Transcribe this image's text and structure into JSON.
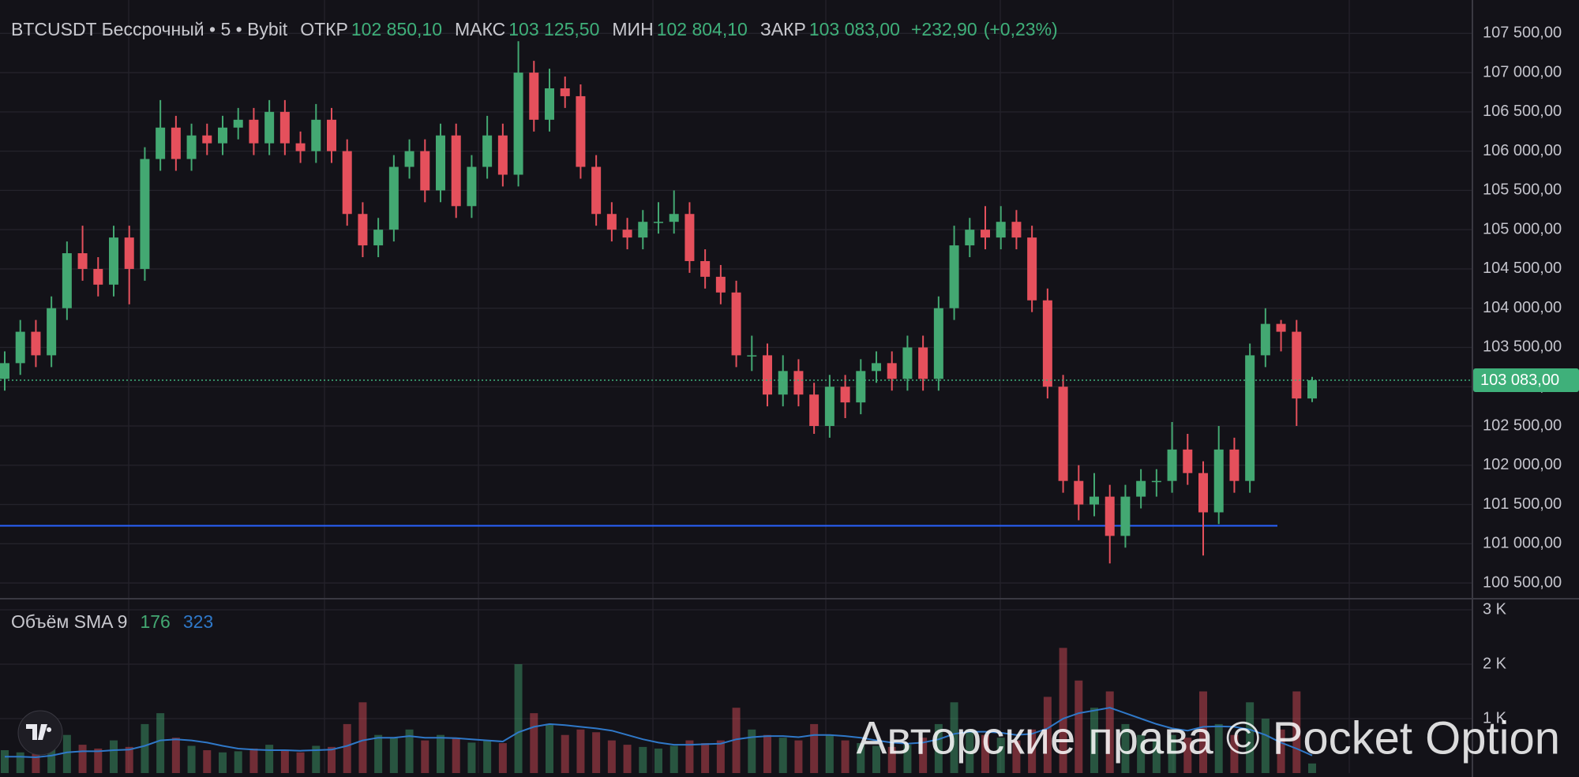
{
  "chart_data": {
    "type": "candlestick",
    "symbol": "BTCUSDT Бессрочный • 5 • Bybit",
    "legend_fields": [
      {
        "name": "ОТКР",
        "value": 102850.1,
        "label": "102 850,10"
      },
      {
        "name": "МАКС",
        "value": 103125.5,
        "label": "103 125,50"
      },
      {
        "name": "МИН",
        "value": 102804.1,
        "label": "102 804,10"
      },
      {
        "name": "ЗАКР",
        "value": 103083,
        "label": "103 083,00"
      }
    ],
    "change": {
      "value": 232.9,
      "label": "+232,90"
    },
    "change_pct": {
      "value": 0.23,
      "label": "(+0,23%)"
    },
    "up_color": "#43a872",
    "down_color": "#e5505c",
    "grid": true,
    "open": [
      103100,
      103300,
      103700,
      103400,
      104000,
      104700,
      104500,
      104300,
      104900,
      104500,
      105900,
      106300,
      105900,
      106200,
      106100,
      106300,
      106400,
      106100,
      106500,
      106100,
      106000,
      106400,
      106000,
      105200,
      104800,
      105000,
      105800,
      106000,
      105500,
      106200,
      105300,
      105800,
      106200,
      105700,
      107000,
      106400,
      106800,
      106700,
      105800,
      105200,
      105000,
      104900,
      105100,
      105100,
      105200,
      104600,
      104400,
      104200,
      103400,
      103400,
      102900,
      103200,
      102900,
      102500,
      103000,
      102800,
      103200,
      103300,
      103100,
      103500,
      103100,
      104000,
      104800,
      105000,
      104900,
      105100,
      104900,
      104100,
      103000,
      101800,
      101500,
      101600,
      101100,
      101600,
      101800,
      101800,
      102200,
      101900,
      101400,
      102200,
      101800,
      103400,
      103800,
      103700,
      102850.1
    ],
    "high": [
      103450,
      103850,
      103850,
      104150,
      104850,
      105050,
      104650,
      105050,
      105050,
      106050,
      106650,
      106450,
      106350,
      106350,
      106450,
      106550,
      106550,
      106650,
      106650,
      106250,
      106600,
      106550,
      106150,
      105350,
      105150,
      105950,
      106150,
      106150,
      106350,
      106350,
      105950,
      106450,
      106350,
      107400,
      107150,
      107050,
      106950,
      106850,
      105950,
      105350,
      105150,
      105250,
      105350,
      105500,
      105350,
      104750,
      104550,
      104350,
      103650,
      103550,
      103400,
      103350,
      103050,
      103150,
      103150,
      103350,
      103450,
      103450,
      103650,
      103650,
      104150,
      105050,
      105150,
      105300,
      105300,
      105250,
      105050,
      104250,
      103150,
      102000,
      101900,
      101750,
      101750,
      101950,
      101950,
      102550,
      102400,
      102050,
      102500,
      102350,
      103550,
      104000,
      103850,
      103850,
      103125.5
    ],
    "low": [
      102950,
      103150,
      103250,
      103250,
      103850,
      104350,
      104150,
      104150,
      104050,
      104350,
      105750,
      105750,
      105750,
      105950,
      105950,
      106150,
      105950,
      105950,
      105950,
      105850,
      105850,
      105850,
      105050,
      104650,
      104650,
      104850,
      105650,
      105350,
      105350,
      105150,
      105150,
      105650,
      105550,
      105550,
      106250,
      106250,
      106550,
      105650,
      105050,
      104850,
      104750,
      104750,
      104950,
      104950,
      104450,
      104250,
      104050,
      103250,
      103200,
      102750,
      102750,
      102750,
      102400,
      102350,
      102600,
      102650,
      103050,
      102950,
      102950,
      102950,
      102950,
      103850,
      104650,
      104750,
      104750,
      104750,
      103950,
      102850,
      101650,
      101300,
      101350,
      100750,
      100950,
      101450,
      101600,
      101650,
      101750,
      100850,
      101250,
      101650,
      101650,
      103250,
      103450,
      102500,
      102804.1
    ],
    "close": [
      103300,
      103700,
      103400,
      104000,
      104700,
      104500,
      104300,
      104900,
      104500,
      105900,
      106300,
      105900,
      106200,
      106100,
      106300,
      106400,
      106100,
      106500,
      106100,
      106000,
      106400,
      106000,
      105200,
      104800,
      105000,
      105800,
      106000,
      105500,
      106200,
      105300,
      105800,
      106200,
      105700,
      107000,
      106400,
      106800,
      106700,
      105800,
      105200,
      105000,
      104900,
      105100,
      105100,
      105200,
      104600,
      104400,
      104200,
      103400,
      103400,
      102900,
      103200,
      102900,
      102500,
      103000,
      102800,
      103200,
      103300,
      103100,
      103500,
      103100,
      104000,
      104800,
      105000,
      104900,
      105100,
      104900,
      104100,
      103000,
      101800,
      101500,
      101600,
      101100,
      101600,
      101800,
      101800,
      102200,
      101900,
      101400,
      102200,
      101800,
      103400,
      103800,
      103700,
      102850.1,
      103083
    ],
    "ylim": [
      100330,
      107925
    ],
    "yticks": [
      {
        "value": 100500,
        "label": "100 500,00"
      },
      {
        "value": 101000,
        "label": "101 000,00"
      },
      {
        "value": 101500,
        "label": "101 500,00"
      },
      {
        "value": 102000,
        "label": "102 000,00"
      },
      {
        "value": 102500,
        "label": "102 500,00"
      },
      {
        "value": 103000,
        "label": "103 000,00"
      },
      {
        "value": 103500,
        "label": "103 500,00"
      },
      {
        "value": 104000,
        "label": "104 000,00"
      },
      {
        "value": 104500,
        "label": "104 500,00"
      },
      {
        "value": 105000,
        "label": "105 000,00"
      },
      {
        "value": 105500,
        "label": "105 500,00"
      },
      {
        "value": 106000,
        "label": "106 000,00"
      },
      {
        "value": 106500,
        "label": "106 500,00"
      },
      {
        "value": 107000,
        "label": "107 000,00"
      },
      {
        "value": 107500,
        "label": "107 500,00"
      }
    ],
    "last_price": {
      "value": 103083,
      "label": "103 083,00",
      "color": "#3fb07a"
    },
    "level_line": {
      "value": 101229,
      "color": "#2962ff"
    },
    "volume": {
      "title": "Объём SMA 9",
      "values": [
        420,
        380,
        350,
        500,
        700,
        520,
        450,
        600,
        480,
        900,
        1100,
        650,
        500,
        420,
        380,
        400,
        450,
        520,
        430,
        380,
        500,
        480,
        900,
        1300,
        700,
        650,
        800,
        600,
        700,
        650,
        560,
        600,
        550,
        2000,
        1100,
        900,
        700,
        800,
        750,
        600,
        520,
        480,
        450,
        500,
        600,
        550,
        600,
        1200,
        800,
        700,
        650,
        600,
        900,
        700,
        600,
        550,
        500,
        480,
        520,
        650,
        900,
        1300,
        800,
        700,
        650,
        600,
        800,
        1400,
        2300,
        1700,
        1200,
        1500,
        900,
        700,
        600,
        700,
        650,
        1500,
        900,
        700,
        1300,
        1000,
        800,
        1500,
        176
      ],
      "sma": {
        "color": "#2f78c8",
        "values": [
          300,
          300,
          290,
          320,
          380,
          400,
          400,
          420,
          430,
          500,
          600,
          620,
          600,
          560,
          500,
          450,
          430,
          420,
          420,
          410,
          420,
          430,
          500,
          600,
          650,
          650,
          680,
          650,
          650,
          640,
          620,
          600,
          580,
          750,
          850,
          900,
          880,
          850,
          820,
          780,
          700,
          620,
          560,
          520,
          520,
          530,
          540,
          620,
          660,
          680,
          680,
          660,
          700,
          700,
          680,
          650,
          600,
          560,
          540,
          560,
          620,
          720,
          760,
          760,
          740,
          700,
          720,
          820,
          1000,
          1100,
          1150,
          1200,
          1100,
          1000,
          900,
          820,
          780,
          850,
          860,
          850,
          800,
          700,
          560,
          450,
          323
        ]
      },
      "ylim": [
        0,
        3116
      ],
      "yticks": [
        {
          "value": 1000,
          "label": "1 K"
        },
        {
          "value": 2000,
          "label": "2 K"
        },
        {
          "value": 3000,
          "label": "3 K"
        }
      ]
    },
    "watermark": "Авторские права © Pocket Option"
  }
}
